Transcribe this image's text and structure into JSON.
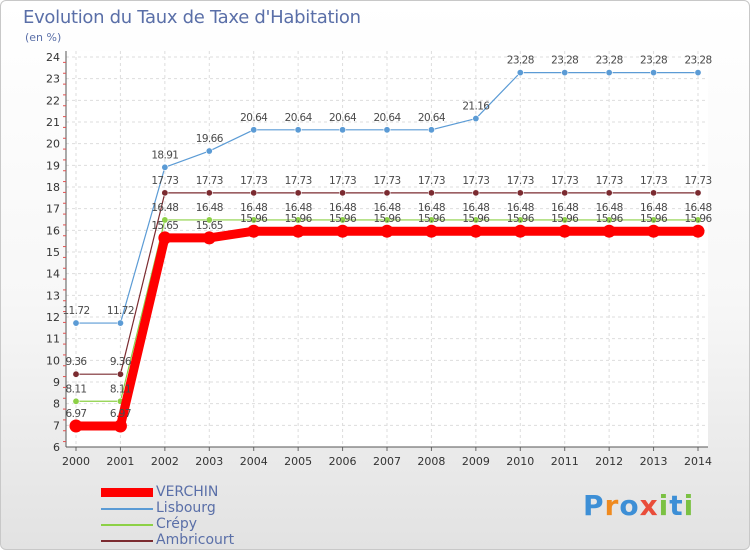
{
  "header": {
    "title": "Evolution du Taux de Taxe d'Habitation",
    "unit": "(en %)"
  },
  "chart_data": {
    "type": "line",
    "title": "Evolution du Taux de Taxe d'Habitation",
    "xlabel": "",
    "ylabel": "(en %)",
    "x": [
      "2000",
      "2001",
      "2002",
      "2003",
      "2004",
      "2005",
      "2006",
      "2007",
      "2008",
      "2009",
      "2010",
      "2011",
      "2012",
      "2013",
      "2014"
    ],
    "ylim": [
      6,
      24
    ],
    "yticks": [
      6,
      7,
      8,
      9,
      10,
      11,
      12,
      13,
      14,
      15,
      16,
      17,
      18,
      19,
      20,
      21,
      22,
      23,
      24
    ],
    "grid": true,
    "legend_position": "bottom-left",
    "series": [
      {
        "name": "VERCHIN",
        "color": "#ff0000",
        "values": [
          6.97,
          6.97,
          15.65,
          15.65,
          15.96,
          15.96,
          15.96,
          15.96,
          15.96,
          15.96,
          15.96,
          15.96,
          15.96,
          15.96,
          15.96
        ],
        "labels": [
          "6.97",
          "6.97",
          "15.65",
          "15.65",
          "15.96",
          "15.96",
          "15.96",
          "15.96",
          "15.96",
          "15.96",
          "15.96",
          "15.96",
          "15.96",
          "15.96",
          "15.96"
        ]
      },
      {
        "name": "Lisbourg",
        "color": "#5b9bd5",
        "values": [
          11.72,
          11.72,
          18.91,
          19.66,
          20.64,
          20.64,
          20.64,
          20.64,
          20.64,
          21.16,
          23.28,
          23.28,
          23.28,
          23.28,
          23.28
        ],
        "labels": [
          "11.72",
          "11.72",
          "18.91",
          "19.66",
          "20.64",
          "20.64",
          "20.64",
          "20.64",
          "20.64",
          "21.16",
          "23.28",
          "23.28",
          "23.28",
          "23.28",
          "23.28"
        ]
      },
      {
        "name": "Crépy",
        "color": "#8cd046",
        "values": [
          8.11,
          8.11,
          16.48,
          16.48,
          16.48,
          16.48,
          16.48,
          16.48,
          16.48,
          16.48,
          16.48,
          16.48,
          16.48,
          16.48,
          16.48
        ],
        "labels": [
          "8.11",
          "8.11",
          "16.48",
          "16.48",
          "16.48",
          "16.48",
          "16.48",
          "16.48",
          "16.48",
          "16.48",
          "16.48",
          "16.48",
          "16.48",
          "16.48",
          "16.48"
        ]
      },
      {
        "name": "Ambricourt",
        "color": "#7b2b30",
        "values": [
          9.36,
          9.36,
          17.73,
          17.73,
          17.73,
          17.73,
          17.73,
          17.73,
          17.73,
          17.73,
          17.73,
          17.73,
          17.73,
          17.73,
          17.73
        ],
        "labels": [
          "9.36",
          "9.36",
          "17.73",
          "17.73",
          "17.73",
          "17.73",
          "17.73",
          "17.73",
          "17.73",
          "17.73",
          "17.73",
          "17.73",
          "17.73",
          "17.73",
          "17.73"
        ]
      }
    ]
  },
  "logo": {
    "letters": [
      "P",
      "r",
      "o",
      "x",
      "i",
      "t",
      "i"
    ],
    "colors": [
      "#3d8fd6",
      "#ef8a1f",
      "#3d8fd6",
      "#e94d3a",
      "#7bc143",
      "#3d8fd6",
      "#7bc143"
    ]
  }
}
